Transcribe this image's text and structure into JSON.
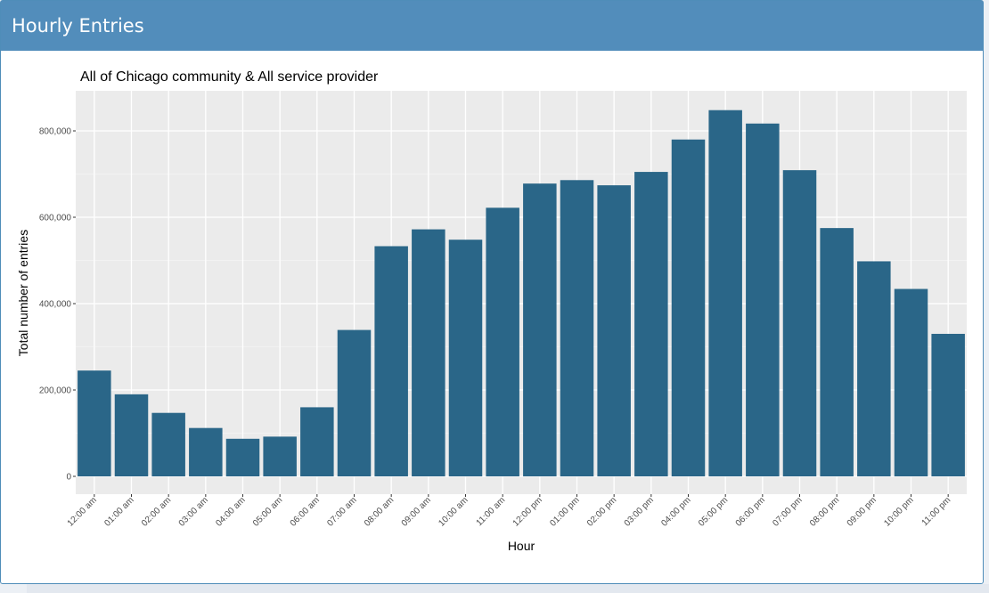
{
  "box": {
    "title": "Hourly Entries"
  },
  "chart_data": {
    "type": "bar",
    "title": "All of Chicago  community &  All  service provider",
    "xlabel": "Hour",
    "ylabel": "Total number of entries",
    "ylim": [
      0,
      880000
    ],
    "yticks": [
      0,
      200000,
      400000,
      600000,
      800000
    ],
    "ytick_labels": [
      "0",
      "200,000",
      "400,000",
      "600,000",
      "800,000"
    ],
    "grid": true,
    "bar_color": "#2a6688",
    "panel_color": "#ebebeb",
    "categories": [
      "12:00 am",
      "01:00 am",
      "02:00 am",
      "03:00 am",
      "04:00 am",
      "05:00 am",
      "06:00 am",
      "07:00 am",
      "08:00 am",
      "09:00 am",
      "10:00 am",
      "11:00 am",
      "12:00 pm",
      "01:00 pm",
      "02:00 pm",
      "03:00 pm",
      "04:00 pm",
      "05:00 pm",
      "06:00 pm",
      "07:00 pm",
      "08:00 pm",
      "09:00 pm",
      "10:00 pm",
      "11:00 pm"
    ],
    "values": [
      245000,
      190000,
      147000,
      112000,
      87000,
      92000,
      160000,
      339000,
      533000,
      572000,
      548000,
      622000,
      678000,
      686000,
      674000,
      705000,
      780000,
      848000,
      817000,
      709000,
      575000,
      498000,
      434000,
      330000
    ]
  }
}
